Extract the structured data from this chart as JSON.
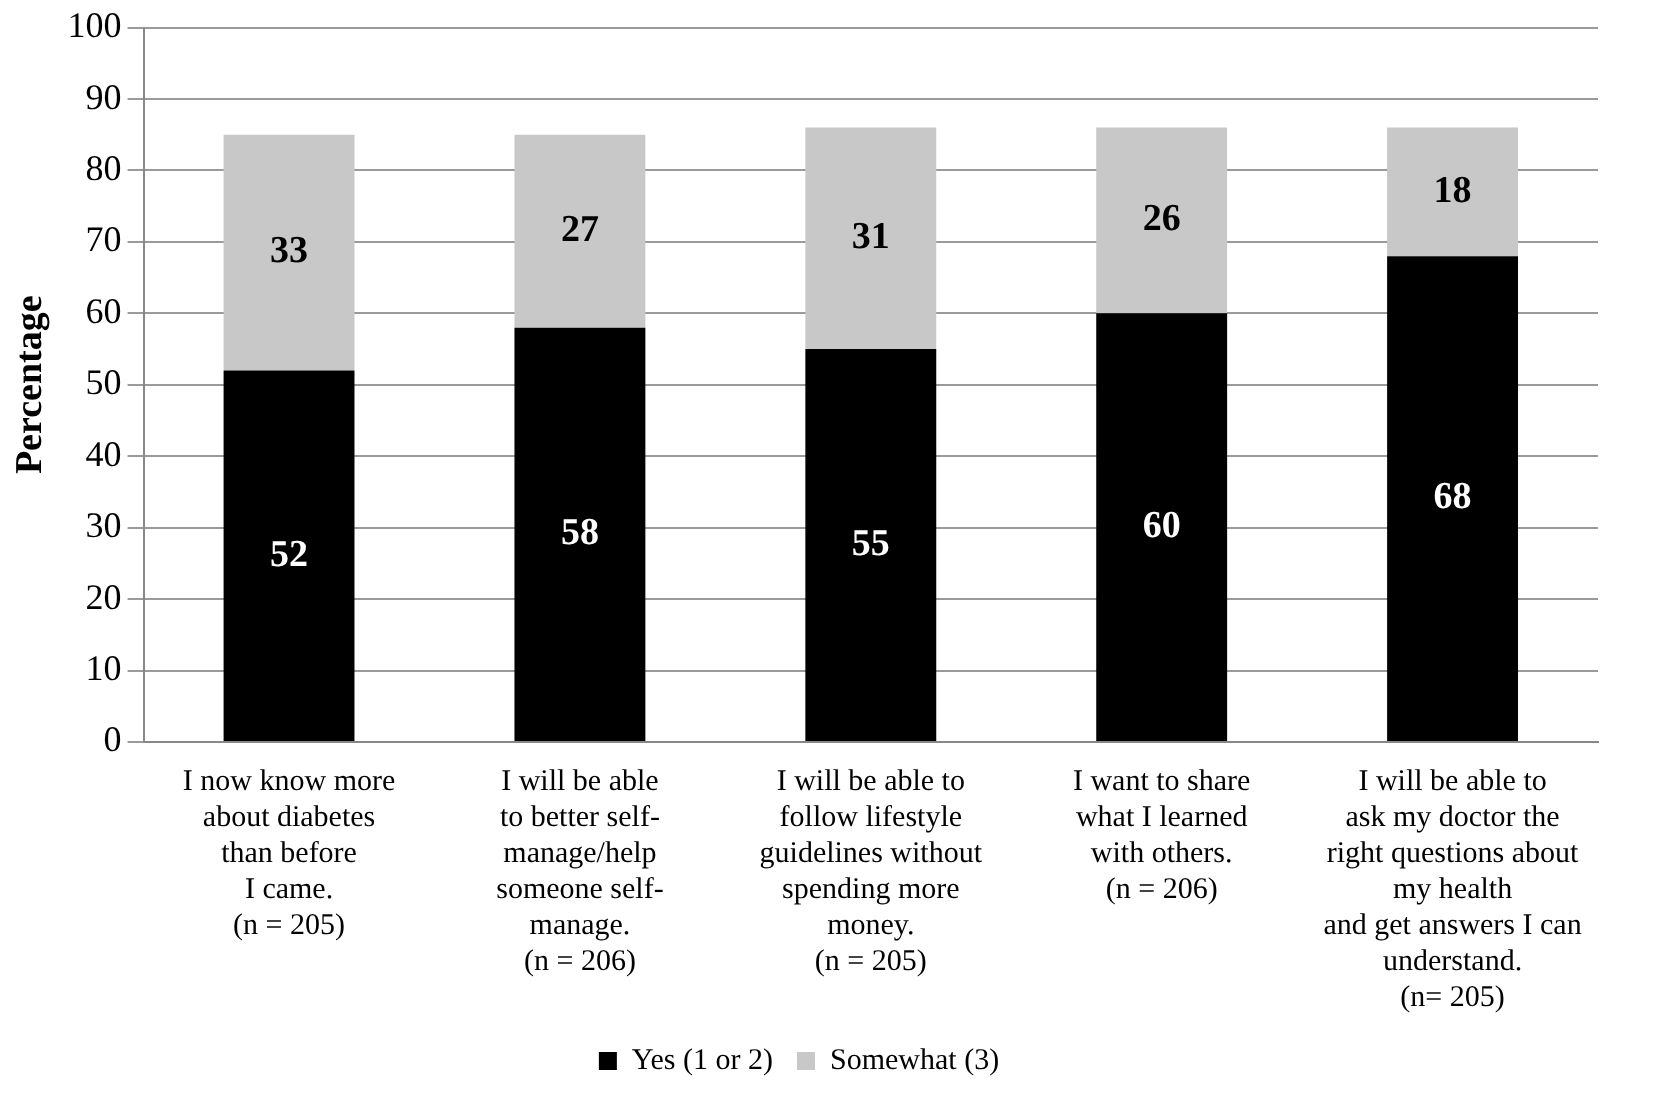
{
  "chart_data": {
    "type": "bar",
    "stacked": true,
    "ylabel": "Percentage",
    "categories": [
      "I now know more\nabout diabetes\nthan before\nI came.\n(n = 205)",
      "I will be able\nto better self-\nmanage/help\nsomeone self-\nmanage.\n(n = 206)",
      "I will be able to\nfollow lifestyle\nguidelines without\nspending more\nmoney.\n(n = 205)",
      "I want to share\nwhat I learned\nwith others.\n(n = 206)",
      "I will be able to\nask my doctor the\nright questions about\nmy health\nand get answers I can\nunderstand.\n(n= 205)"
    ],
    "series": [
      {
        "name": "Yes (1 or 2)",
        "color": "#000000",
        "values": [
          52,
          58,
          55,
          60,
          68
        ]
      },
      {
        "name": "Somewhat (3)",
        "color": "#c8c8c8",
        "values": [
          33,
          27,
          31,
          26,
          18
        ]
      }
    ],
    "ylim": [
      0,
      100
    ],
    "yticks": [
      0,
      10,
      20,
      30,
      40,
      50,
      60,
      70,
      80,
      90,
      100
    ],
    "grid": "y",
    "legend": "bottom",
    "data_labels": true
  }
}
